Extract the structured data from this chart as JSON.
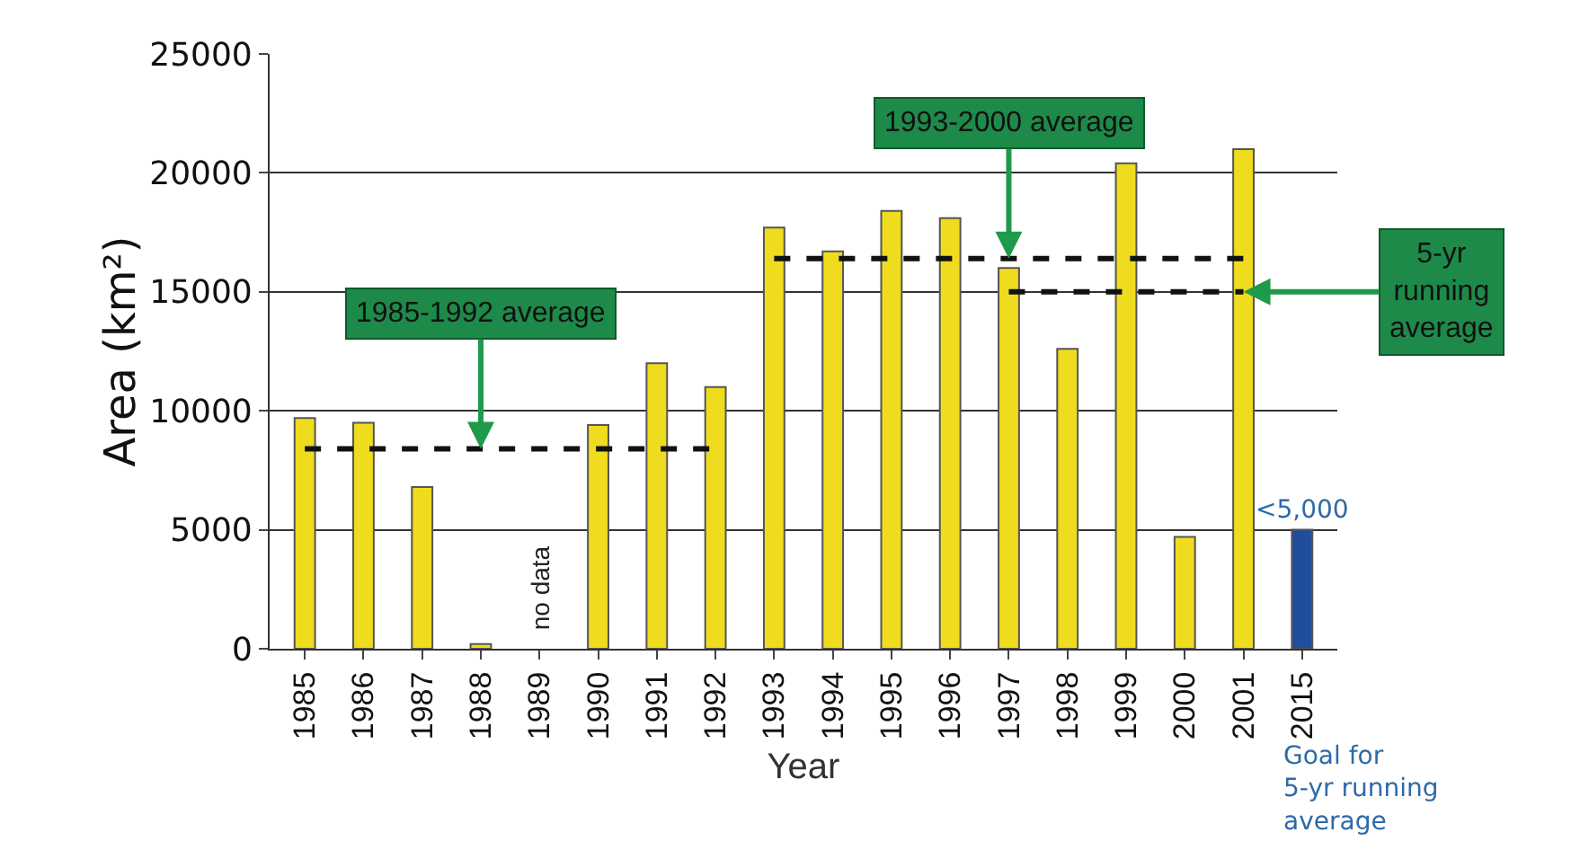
{
  "chart_data": {
    "type": "bar",
    "xlabel": "Year",
    "ylabel": "Area (km²)",
    "categories": [
      "1985",
      "1986",
      "1987",
      "1988",
      "1989",
      "1990",
      "1991",
      "1992",
      "1993",
      "1994",
      "1995",
      "1996",
      "1997",
      "1998",
      "1999",
      "2000",
      "2001",
      "2015"
    ],
    "ylim": [
      0,
      25000
    ],
    "yticks": [
      0,
      5000,
      10000,
      15000,
      20000,
      25000
    ],
    "grid": "y",
    "marker": "none",
    "series": [
      {
        "colors": [
          "#f0dc1e",
          "#f0dc1e",
          "#f0dc1e",
          "#f0dc1e",
          "#f0dc1e",
          "#f0dc1e",
          "#f0dc1e",
          "#f0dc1e",
          "#f0dc1e",
          "#f0dc1e",
          "#f0dc1e",
          "#f0dc1e",
          "#f0dc1e",
          "#f0dc1e",
          "#f0dc1e",
          "#f0dc1e",
          "#f0dc1e",
          "#1f4e9c"
        ],
        "values": [
          9700,
          9500,
          6800,
          200,
          null,
          9400,
          12000,
          11000,
          17700,
          16700,
          18400,
          18100,
          16000,
          12600,
          20400,
          4700,
          21000,
          5000
        ],
        "value_labels": [
          null,
          null,
          null,
          null,
          null,
          null,
          null,
          null,
          null,
          null,
          null,
          null,
          null,
          null,
          null,
          null,
          null,
          "<5,000"
        ]
      },
      {
        "type": "line",
        "values": [
          8400,
          8400,
          8400,
          8400,
          8400,
          8400,
          8400,
          8400,
          null,
          null,
          null,
          null,
          null,
          null,
          null,
          null,
          null,
          null
        ],
        "color": "#111111",
        "line_style": "dashed"
      },
      {
        "type": "line",
        "values": [
          null,
          null,
          null,
          null,
          null,
          null,
          null,
          null,
          16400,
          16400,
          16400,
          16400,
          16400,
          16400,
          16400,
          16400,
          16400,
          null
        ],
        "color": "#111111",
        "line_style": "dashed"
      },
      {
        "type": "line",
        "values": [
          null,
          null,
          null,
          null,
          null,
          null,
          null,
          null,
          null,
          null,
          null,
          null,
          15000,
          15000,
          15000,
          15000,
          15000,
          null
        ],
        "color": "#111111",
        "line_style": "dashed"
      }
    ],
    "annotations": [
      {
        "text": "1985-1992 average",
        "x": "1988",
        "y": 8400
      },
      {
        "text": "1993-2000 average",
        "x": "1997",
        "y": 16400
      },
      {
        "text": "5-yr\nrunning\naverage",
        "x": "2001",
        "y": 15000
      },
      "no data",
      "Goal for\n5-yr running\naverage"
    ]
  }
}
